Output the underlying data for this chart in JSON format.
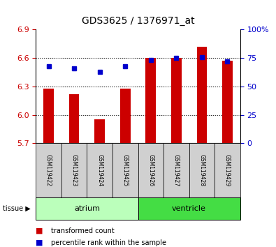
{
  "title": "GDS3625 / 1376971_at",
  "samples": [
    "GSM119422",
    "GSM119423",
    "GSM119424",
    "GSM119425",
    "GSM119426",
    "GSM119427",
    "GSM119428",
    "GSM119429"
  ],
  "transformed_count": [
    6.28,
    6.22,
    5.95,
    6.28,
    6.6,
    6.6,
    6.72,
    6.57
  ],
  "percentile_rank": [
    68,
    66,
    63,
    68,
    73,
    75,
    76,
    72
  ],
  "ylim_left": [
    5.7,
    6.9
  ],
  "ylim_right": [
    0,
    100
  ],
  "yticks_left": [
    5.7,
    6.0,
    6.3,
    6.6,
    6.9
  ],
  "yticks_right": [
    0,
    25,
    50,
    75,
    100
  ],
  "bar_color": "#cc0000",
  "dot_color": "#0000cc",
  "bar_width": 0.4,
  "atrium_color": "#bbffbb",
  "ventricle_color": "#44dd44",
  "sample_box_color": "#d0d0d0",
  "tissue_label": "tissue",
  "legend_bar_label": "transformed count",
  "legend_dot_label": "percentile rank within the sample",
  "bg_color": "#ffffff",
  "plot_bg": "#ffffff",
  "tick_color_left": "#cc0000",
  "tick_color_right": "#0000cc",
  "grid_lines_at": [
    6.0,
    6.3,
    6.6
  ]
}
